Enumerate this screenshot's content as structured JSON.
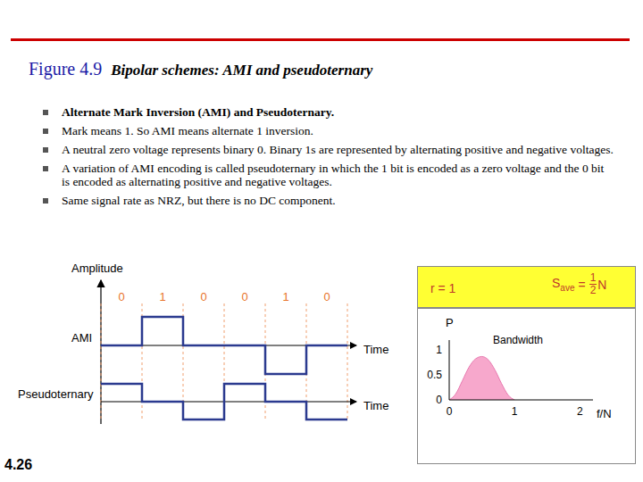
{
  "header": {
    "figure": "Figure 4.9",
    "title": "Bipolar schemes: AMI and pseudoternary"
  },
  "bullets": [
    "Alternate Mark Inversion (AMI) and Pseudoternary.",
    "Mark means 1. So AMI means alternate 1 inversion.",
    "A neutral zero voltage represents binary 0. Binary 1s are represented by alternating positive and negative voltages.",
    "A variation of AMI encoding is called pseudoternary in which the 1 bit is encoded as a zero voltage and the 0 bit is encoded as alternating positive and negative voltages.",
    "Same signal rate as NRZ, but there is no DC component."
  ],
  "diagram": {
    "y_label": "Amplitude",
    "x_label": "Time",
    "bits": [
      "0",
      "1",
      "0",
      "0",
      "1",
      "0"
    ],
    "rows": [
      {
        "name": "AMI",
        "levels": [
          0,
          1,
          0,
          0,
          -1,
          0
        ]
      },
      {
        "name": "Pseudoternary",
        "levels": [
          1,
          0,
          -1,
          1,
          0,
          -1
        ]
      }
    ]
  },
  "panel": {
    "r": "r = 1",
    "s_ave": {
      "symbol": "S",
      "subscript": "ave",
      "equals": "=",
      "numerator": "1",
      "denominator": "2",
      "suffix": "N"
    }
  },
  "chart_data": {
    "type": "area",
    "annotation": "Bandwidth",
    "xlabel": "f/N",
    "ylabel": "P",
    "x": [
      0,
      0.1,
      0.2,
      0.3,
      0.4,
      0.5,
      0.6,
      0.7,
      0.8,
      0.9,
      1.0
    ],
    "values": [
      0,
      0.12,
      0.38,
      0.65,
      0.82,
      0.87,
      0.8,
      0.6,
      0.33,
      0.1,
      0
    ],
    "color": "#f7a8cc",
    "xlim": [
      0,
      2.2
    ],
    "ylim": [
      0,
      1.2
    ],
    "xticks": [
      0,
      1,
      2
    ],
    "yticks": [
      0,
      0.5,
      1
    ],
    "grid": false
  },
  "page": "4.26"
}
